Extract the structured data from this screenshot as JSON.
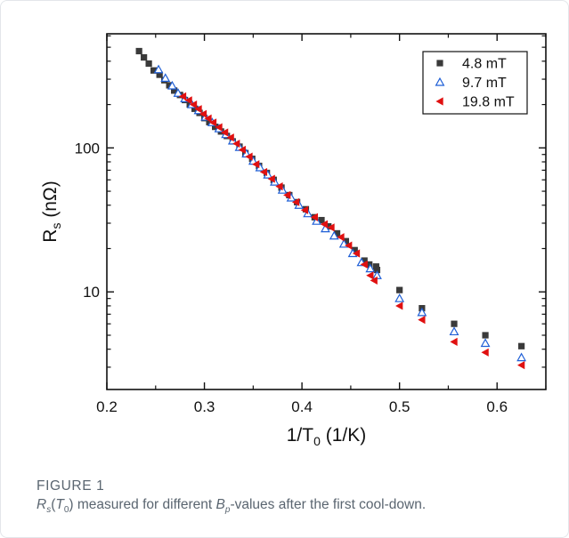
{
  "chart_data": {
    "type": "scatter",
    "x_axis": {
      "label_base": "1/T",
      "label_sub": "0",
      "label_rest": " (1/K)",
      "range": [
        0.2,
        0.65
      ],
      "ticks": [
        0.2,
        0.3,
        0.4,
        0.5,
        0.6
      ],
      "tick_labels": [
        "0.2",
        "0.3",
        "0.4",
        "0.5",
        "0.6"
      ]
    },
    "y_axis": {
      "label_base": "R",
      "label_sub": "s",
      "label_rest": " (nΩ)",
      "scale": "log",
      "range": [
        2.1,
        620
      ],
      "ticks": [
        10,
        100
      ],
      "tick_labels": [
        "10",
        "100"
      ]
    },
    "legend": {
      "position": "top-right"
    },
    "grid": false,
    "series": [
      {
        "name": "4.8 mT",
        "marker": "square",
        "color": "#3a3a3a",
        "points": [
          [
            0.233,
            470
          ],
          [
            0.238,
            425
          ],
          [
            0.243,
            385
          ],
          [
            0.248,
            345
          ],
          [
            0.254,
            322
          ],
          [
            0.259,
            295
          ],
          [
            0.264,
            272
          ],
          [
            0.269,
            250
          ],
          [
            0.275,
            233
          ],
          [
            0.28,
            215
          ],
          [
            0.285,
            200
          ],
          [
            0.29,
            187
          ],
          [
            0.295,
            175
          ],
          [
            0.3,
            161
          ],
          [
            0.305,
            151
          ],
          [
            0.311,
            140
          ],
          [
            0.317,
            130
          ],
          [
            0.323,
            121
          ],
          [
            0.329,
            111
          ],
          [
            0.336,
            102
          ],
          [
            0.342,
            92
          ],
          [
            0.349,
            84
          ],
          [
            0.356,
            75
          ],
          [
            0.364,
            67
          ],
          [
            0.371,
            60
          ],
          [
            0.379,
            53
          ],
          [
            0.387,
            47
          ],
          [
            0.395,
            42
          ],
          [
            0.404,
            37.5
          ],
          [
            0.413,
            33
          ],
          [
            0.42,
            31.5
          ],
          [
            0.427,
            28.5
          ],
          [
            0.436,
            25.5
          ],
          [
            0.445,
            22.5
          ],
          [
            0.454,
            19.5
          ],
          [
            0.464,
            16.5
          ],
          [
            0.469,
            15.5
          ],
          [
            0.476,
            15
          ],
          [
            0.477,
            14.2
          ],
          [
            0.5,
            10.3
          ],
          [
            0.523,
            7.7
          ],
          [
            0.556,
            6.0
          ],
          [
            0.588,
            5.0
          ],
          [
            0.625,
            4.2
          ]
        ]
      },
      {
        "name": "9.7 mT",
        "marker": "triangle-up-open",
        "color": "#1f5fd6",
        "points": [
          [
            0.253,
            350
          ],
          [
            0.26,
            305
          ],
          [
            0.267,
            270
          ],
          [
            0.273,
            240
          ],
          [
            0.28,
            220
          ],
          [
            0.287,
            200
          ],
          [
            0.294,
            182
          ],
          [
            0.301,
            164
          ],
          [
            0.308,
            150
          ],
          [
            0.315,
            136
          ],
          [
            0.322,
            124
          ],
          [
            0.329,
            112
          ],
          [
            0.336,
            101
          ],
          [
            0.343,
            91
          ],
          [
            0.35,
            81
          ],
          [
            0.357,
            73
          ],
          [
            0.365,
            65
          ],
          [
            0.372,
            58
          ],
          [
            0.38,
            51
          ],
          [
            0.389,
            45
          ],
          [
            0.397,
            40
          ],
          [
            0.406,
            35
          ],
          [
            0.415,
            31
          ],
          [
            0.424,
            27.5
          ],
          [
            0.433,
            24.5
          ],
          [
            0.443,
            21.5
          ],
          [
            0.452,
            18.5
          ],
          [
            0.461,
            16
          ],
          [
            0.47,
            14.5
          ],
          [
            0.477,
            13
          ],
          [
            0.5,
            9.0
          ],
          [
            0.523,
            7.2
          ],
          [
            0.556,
            5.3
          ],
          [
            0.588,
            4.4
          ],
          [
            0.625,
            3.5
          ]
        ]
      },
      {
        "name": "19.8 mT",
        "marker": "triangle-left-filled",
        "color": "#e01010",
        "points": [
          [
            0.278,
            228
          ],
          [
            0.284,
            214
          ],
          [
            0.289,
            200
          ],
          [
            0.294,
            186
          ],
          [
            0.299,
            172
          ],
          [
            0.304,
            160
          ],
          [
            0.309,
            150
          ],
          [
            0.315,
            139
          ],
          [
            0.321,
            128
          ],
          [
            0.327,
            118
          ],
          [
            0.333,
            107
          ],
          [
            0.339,
            97
          ],
          [
            0.346,
            87
          ],
          [
            0.353,
            77
          ],
          [
            0.361,
            68
          ],
          [
            0.369,
            61
          ],
          [
            0.377,
            54
          ],
          [
            0.385,
            47
          ],
          [
            0.394,
            42
          ],
          [
            0.403,
            37
          ],
          [
            0.413,
            33
          ],
          [
            0.423,
            29.5
          ],
          [
            0.43,
            28
          ],
          [
            0.44,
            24
          ],
          [
            0.448,
            21
          ],
          [
            0.456,
            18.5
          ],
          [
            0.464,
            15.5
          ],
          [
            0.47,
            13
          ],
          [
            0.474,
            12
          ],
          [
            0.5,
            8.0
          ],
          [
            0.523,
            6.4
          ],
          [
            0.556,
            4.5
          ],
          [
            0.588,
            3.8
          ],
          [
            0.625,
            3.1
          ]
        ]
      }
    ]
  },
  "caption": {
    "figure_label": "FIGURE 1",
    "text_parts": [
      {
        "t": "R",
        "style": "i"
      },
      {
        "t": "s",
        "style": "isub"
      },
      {
        "t": "(",
        "style": "n"
      },
      {
        "t": "T",
        "style": "i"
      },
      {
        "t": "0",
        "style": "sub"
      },
      {
        "t": ") measured for different ",
        "style": "n"
      },
      {
        "t": "B",
        "style": "i"
      },
      {
        "t": "p",
        "style": "isub"
      },
      {
        "t": "-values after the first cool-down.",
        "style": "n"
      }
    ]
  }
}
